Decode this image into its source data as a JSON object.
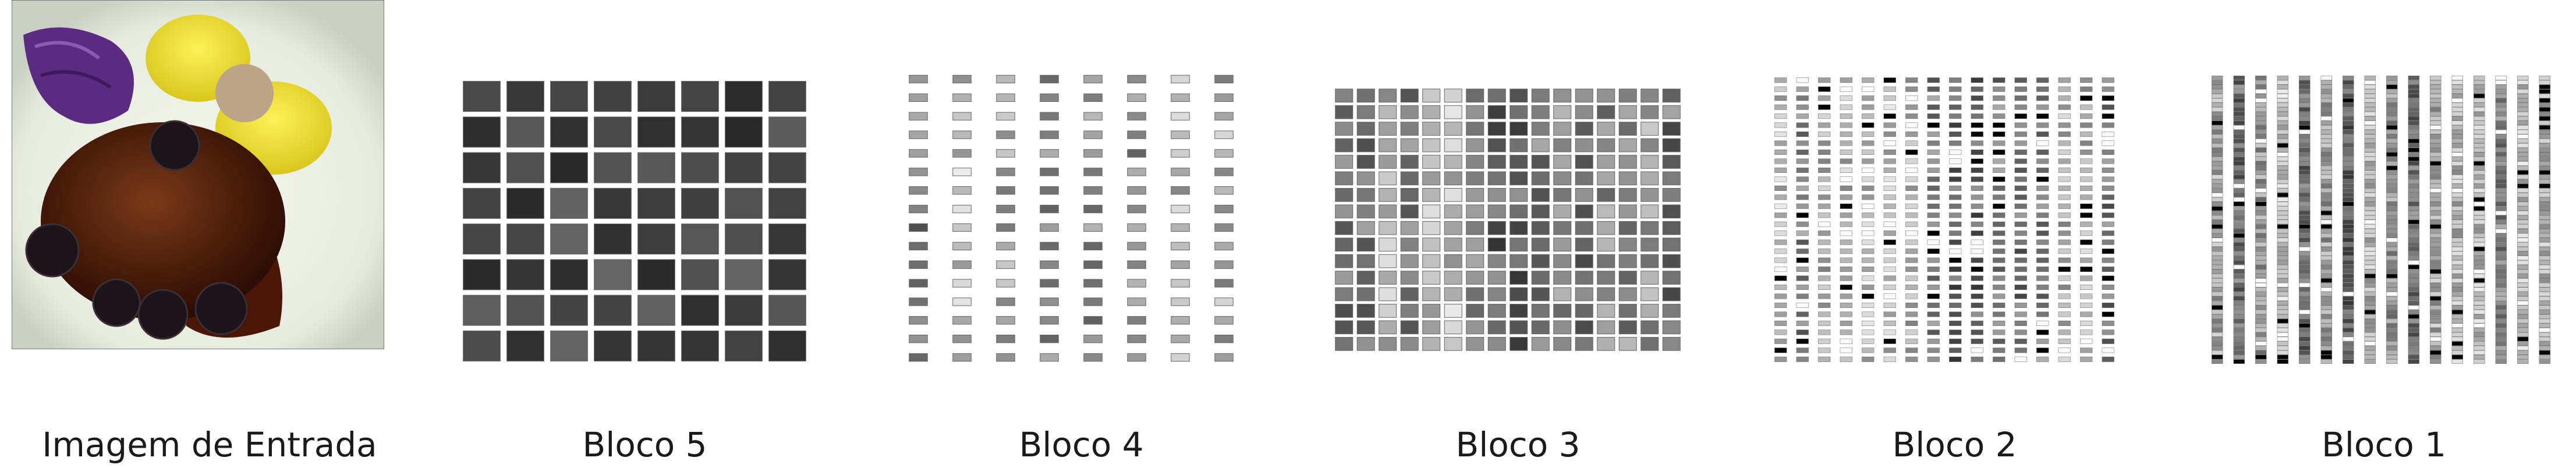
{
  "panels": [
    {
      "id": "input",
      "label": "Imagem de Entrada"
    },
    {
      "id": "b5",
      "label": "Bloco 5",
      "grid": {
        "cols": 8,
        "rows": 8
      }
    },
    {
      "id": "b4",
      "label": "Bloco 4",
      "grid": {
        "cols": 8,
        "rows": 16
      }
    },
    {
      "id": "b3",
      "label": "Bloco 3",
      "grid": {
        "cols": 16,
        "rows": 16
      }
    },
    {
      "id": "b2",
      "label": "Bloco 2",
      "grid": {
        "cols": 16,
        "rows": 32
      }
    },
    {
      "id": "b1",
      "label": "Bloco 1",
      "grid": {
        "cols": 16,
        "rows": 64
      }
    }
  ]
}
